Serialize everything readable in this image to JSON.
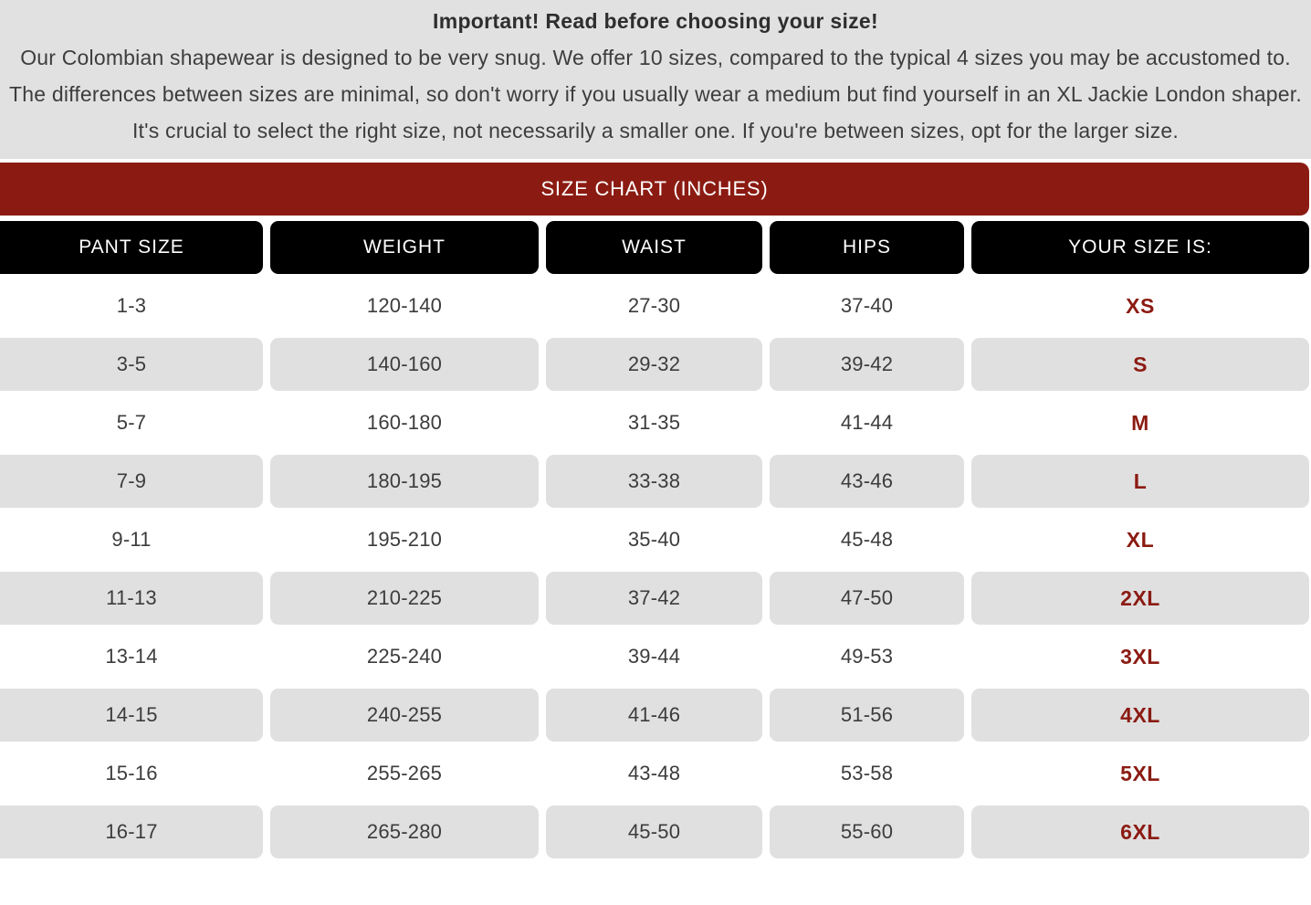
{
  "notice": {
    "title": "Important! Read before choosing your size!",
    "body": "Our Colombian shapewear is designed to be very snug. We offer 10 sizes, compared to the typical 4 sizes you may be accustomed to. The differences between sizes are minimal, so don't worry if you usually wear a medium but find yourself in an XL Jackie London shaper. It's crucial to select the right size, not necessarily a smaller one. If you're between sizes, opt for the larger size."
  },
  "banner": {
    "title": "SIZE CHART (INCHES)"
  },
  "table": {
    "headers": [
      "PANT SIZE",
      "WEIGHT",
      "WAIST",
      "HIPS",
      "YOUR SIZE IS:"
    ],
    "rows": [
      [
        "1-3",
        "120-140",
        "27-30",
        "37-40",
        "XS"
      ],
      [
        "3-5",
        "140-160",
        "29-32",
        "39-42",
        "S"
      ],
      [
        "5-7",
        "160-180",
        "31-35",
        "41-44",
        "M"
      ],
      [
        "7-9",
        "180-195",
        "33-38",
        "43-46",
        "L"
      ],
      [
        "9-11",
        "195-210",
        "35-40",
        "45-48",
        "XL"
      ],
      [
        "11-13",
        "210-225",
        "37-42",
        "47-50",
        "2XL"
      ],
      [
        "13-14",
        "225-240",
        "39-44",
        "49-53",
        "3XL"
      ],
      [
        "14-15",
        "240-255",
        "41-46",
        "51-56",
        "4XL"
      ],
      [
        "15-16",
        "255-265",
        "43-48",
        "53-58",
        "5XL"
      ],
      [
        "16-17",
        "265-280",
        "45-50",
        "55-60",
        "6XL"
      ]
    ]
  },
  "colors": {
    "accent_red": "#8b1b12",
    "header_black": "#000000",
    "row_gray": "#e0e0e0",
    "notice_bg": "#e1e1e1"
  }
}
